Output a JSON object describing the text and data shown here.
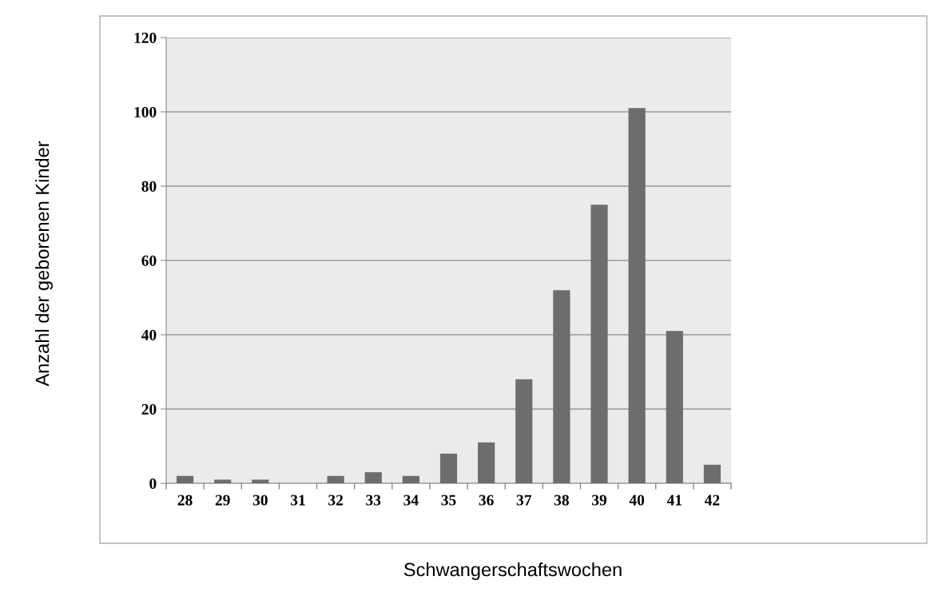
{
  "chart_data": {
    "type": "bar",
    "xlabel": "Schwangerschaftswochen",
    "ylabel": "Anzahl der geborenen Kinder",
    "categories": [
      "28",
      "29",
      "30",
      "31",
      "32",
      "33",
      "34",
      "35",
      "36",
      "37",
      "38",
      "39",
      "40",
      "41",
      "42"
    ],
    "values": [
      2,
      1,
      1,
      0,
      2,
      3,
      2,
      8,
      11,
      28,
      52,
      75,
      101,
      41,
      5
    ],
    "color": "#6d6d6d",
    "ylim": [
      0,
      120
    ],
    "yticks": [
      0,
      20,
      40,
      60,
      80,
      100,
      120
    ],
    "grid": "y"
  }
}
